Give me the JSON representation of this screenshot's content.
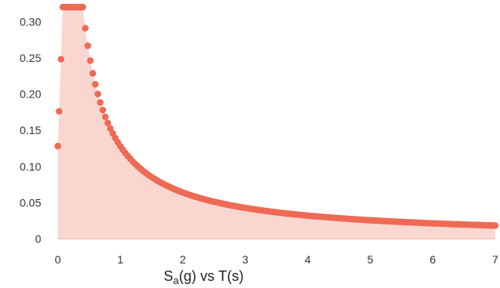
{
  "chart_data": {
    "type": "scatter",
    "subtype": "area",
    "title_main": "S",
    "title_sub": "a",
    "title_rest": "(g) vs T(s)",
    "xlim": [
      0,
      7
    ],
    "ylim": [
      0,
      0.32
    ],
    "x_ticks": [
      0,
      1,
      2,
      3,
      4,
      5,
      6,
      7
    ],
    "x_tick_labels": [
      "0",
      "1",
      "2",
      "3",
      "4",
      "5",
      "6",
      "7"
    ],
    "y_ticks": [
      0,
      0.05,
      0.1,
      0.15,
      0.2,
      0.25,
      0.3
    ],
    "y_tick_labels": [
      "0",
      "0.05",
      "0.10",
      "0.15",
      "0.20",
      "0.25",
      "0.30"
    ],
    "grid": false,
    "color": "#ee6a55",
    "fill_color": "#f7c9c0",
    "spectrum": {
      "y0": 0.128,
      "plateau": 0.32,
      "T_start_plateau": 0.08,
      "T_end_plateau": 0.4,
      "decay_coefficient": 0.128,
      "T_max": 7,
      "step": 0.04
    }
  }
}
